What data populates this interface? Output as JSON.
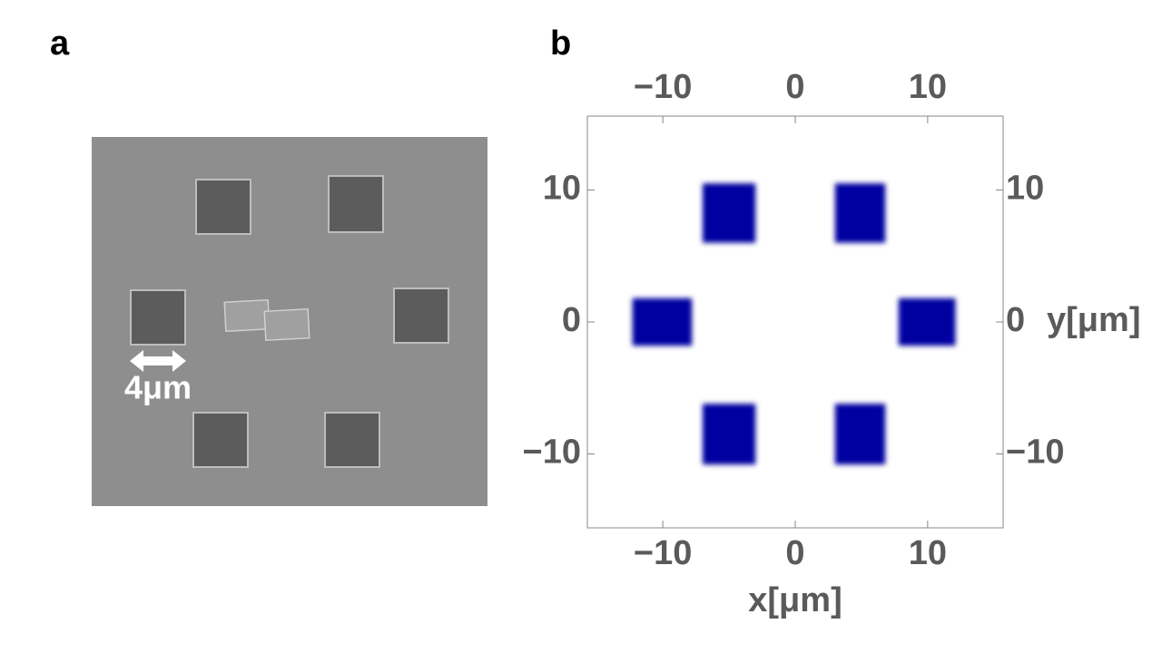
{
  "panel_a": {
    "label": "a",
    "scale_label": "4μm"
  },
  "chart_data": {
    "type": "rect",
    "panel_label": "b",
    "x_label": "x[μm]",
    "y_label": "y[μm]",
    "xlim": [
      -15.7,
      15.7
    ],
    "ylim": [
      -15.6,
      15.6
    ],
    "xticks": [
      {
        "value": -10,
        "label": "−10"
      },
      0,
      10
    ],
    "yticks": [
      {
        "value": -10,
        "label": "−10"
      },
      0,
      10
    ],
    "color": "#0000a0",
    "shapes": [
      {
        "x": [
          -7,
          -3
        ],
        "y": [
          6,
          10.5
        ]
      },
      {
        "x": [
          3,
          6.8
        ],
        "y": [
          6,
          10.5
        ]
      },
      {
        "x": [
          -12.3,
          -7.8
        ],
        "y": [
          -1.8,
          1.8
        ]
      },
      {
        "x": [
          7.8,
          12.1
        ],
        "y": [
          -1.8,
          1.8
        ]
      },
      {
        "x": [
          -7,
          -3
        ],
        "y": [
          -10.8,
          -6.2
        ]
      },
      {
        "x": [
          3,
          6.8
        ],
        "y": [
          -10.8,
          -6.2
        ]
      }
    ]
  }
}
